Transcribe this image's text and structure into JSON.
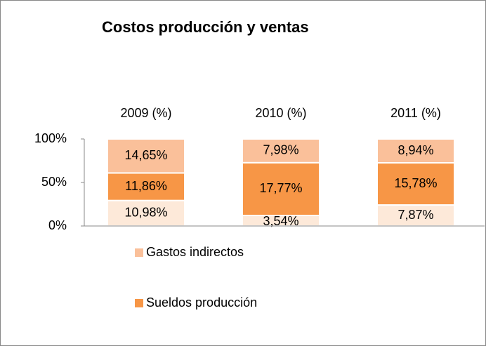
{
  "chart_data": {
    "type": "bar",
    "stacking": "percent",
    "title": "Costos producción y ventas",
    "categories": [
      "2009 (%)",
      "2010 (%)",
      "2011 (%)"
    ],
    "series": [
      {
        "color": "#fde9d9",
        "values": [
          10.98,
          3.54,
          7.87
        ],
        "value_labels": [
          "10,98%",
          "3,54%",
          "7,87%"
        ]
      },
      {
        "name": "Sueldos producción",
        "color": "#f79646",
        "values": [
          11.86,
          17.77,
          15.78
        ],
        "value_labels": [
          "11,86%",
          "17,77%",
          "15,78%"
        ]
      },
      {
        "name": "Gastos indirectos",
        "color": "#fac09a",
        "values": [
          14.65,
          7.98,
          8.94
        ],
        "value_labels": [
          "14,65%",
          "7,98%",
          "8,94%"
        ]
      }
    ],
    "ylim": [
      0,
      100
    ],
    "yticks": [
      {
        "value": 0,
        "label": "0%"
      },
      {
        "value": 50,
        "label": "50%"
      },
      {
        "value": 100,
        "label": "100%"
      }
    ],
    "grid": false
  }
}
